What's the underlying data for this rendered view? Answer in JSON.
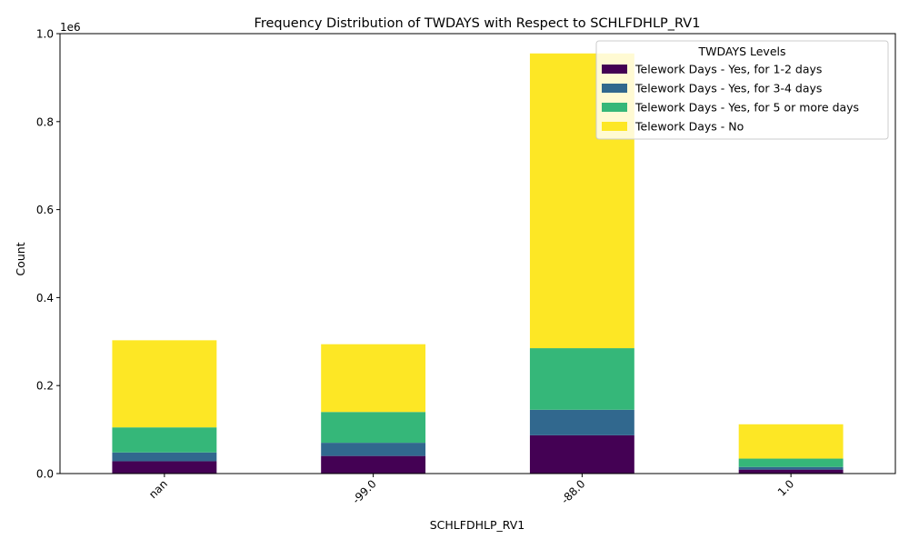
{
  "chart_data": {
    "type": "bar",
    "stacked": true,
    "title": "Frequency Distribution of TWDAYS with Respect to SCHLFDHLP_RV1",
    "xlabel": "SCHLFDHLP_RV1",
    "ylabel": "Count",
    "y_offset_label": "1e6",
    "ylim": [
      0,
      1000000
    ],
    "yticks": [
      0,
      200000,
      400000,
      600000,
      800000,
      1000000
    ],
    "ytick_labels": [
      "0.0",
      "0.2",
      "0.4",
      "0.6",
      "0.8",
      "1.0"
    ],
    "categories": [
      "nan",
      "-99.0",
      "-88.0",
      "1.0"
    ],
    "legend_title": "TWDAYS Levels",
    "legend_position": "upper-right",
    "series": [
      {
        "name": "Telework Days - Yes, for 1-2 days",
        "color": "#440154",
        "values": [
          28000,
          40000,
          87000,
          9000
        ]
      },
      {
        "name": "Telework Days - Yes, for 3-4 days",
        "color": "#31688e",
        "values": [
          20000,
          30000,
          58000,
          6000
        ]
      },
      {
        "name": "Telework Days - Yes, for 5 or more days",
        "color": "#35b779",
        "values": [
          57000,
          70000,
          140000,
          19000
        ]
      },
      {
        "name": "Telework Days - No",
        "color": "#fde725",
        "values": [
          198000,
          154000,
          670000,
          78000
        ]
      }
    ]
  }
}
